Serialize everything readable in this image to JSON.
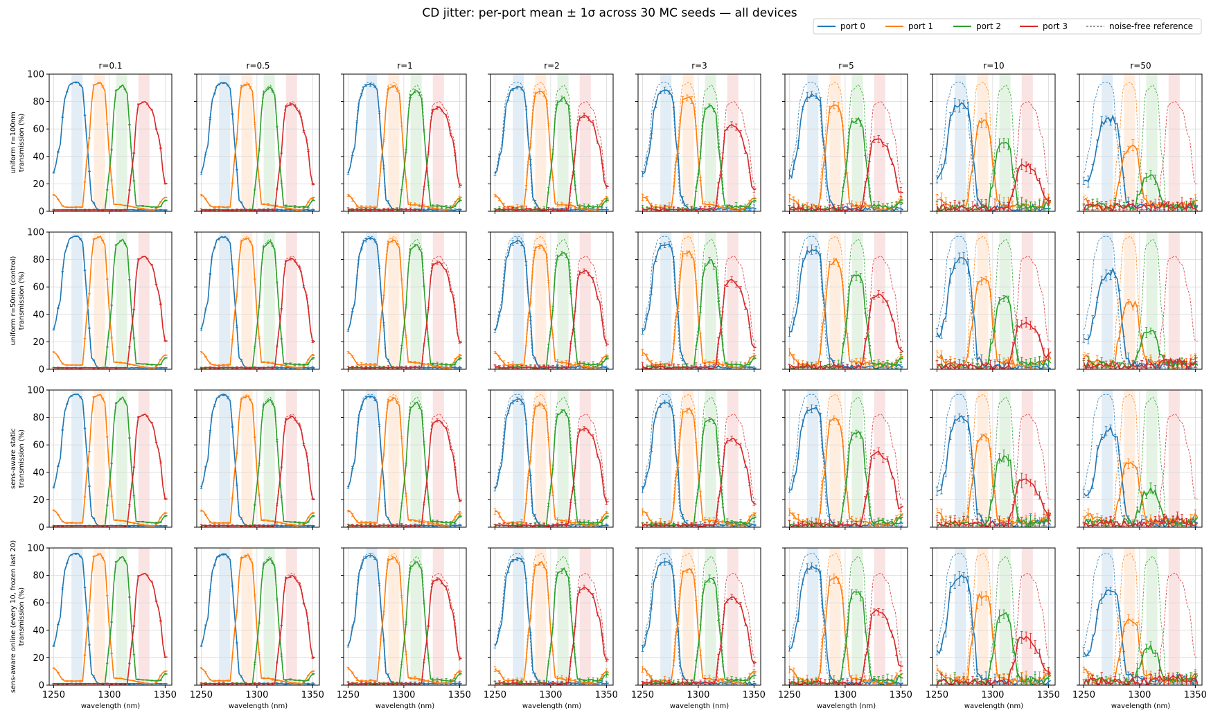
{
  "chart_data": {
    "type": "line",
    "title": "CD jitter: per-port mean ± 1σ across 30 MC seeds — all devices",
    "columns": [
      "r=0.1",
      "r=0.5",
      "r=1",
      "r=2",
      "r=3",
      "r=5",
      "r=10",
      "r=50"
    ],
    "rows": [
      "uniform r=100nm\ntransmission (%)",
      "uniform r=50nm (control)\ntransmission (%)",
      "sens-aware static\ntransmission (%)",
      "sens-aware online (every 10, frozen last 20)\ntransmission (%)"
    ],
    "xlabel": "wavelength (nm)",
    "xlim": [
      1246,
      1356
    ],
    "ylim": [
      0,
      100
    ],
    "xticks": [
      1250,
      1300,
      1350
    ],
    "yticks": [
      0,
      20,
      40,
      60,
      80,
      100
    ],
    "grid": true,
    "legend": {
      "placement": "top-right",
      "entries": [
        "port 0",
        "port 1",
        "port 2",
        "port 3",
        "noise-free reference"
      ]
    },
    "colors": {
      "port 0": "#1f77b4",
      "port 1": "#ff7f0e",
      "port 2": "#2ca02c",
      "port 3": "#d62728",
      "noise-free reference": "#333333"
    },
    "passbands_nm": [
      [
        1266,
        1276
      ],
      [
        1286,
        1296
      ],
      [
        1306,
        1316
      ],
      [
        1326,
        1336
      ]
    ],
    "ports": [
      {
        "name": "port 0",
        "reference": [
          [
            1250,
            28
          ],
          [
            1255,
            45
          ],
          [
            1260,
            82
          ],
          [
            1264,
            92
          ],
          [
            1268,
            94
          ],
          [
            1272,
            94
          ],
          [
            1276,
            90
          ],
          [
            1280,
            50
          ],
          [
            1284,
            8
          ],
          [
            1290,
            1
          ],
          [
            1350,
            1
          ]
        ]
      },
      {
        "name": "port 1",
        "reference": [
          [
            1250,
            12
          ],
          [
            1260,
            3
          ],
          [
            1276,
            3
          ],
          [
            1280,
            40
          ],
          [
            1286,
            92
          ],
          [
            1292,
            94
          ],
          [
            1296,
            88
          ],
          [
            1300,
            40
          ],
          [
            1304,
            5
          ],
          [
            1340,
            1
          ],
          [
            1350,
            10
          ]
        ]
      },
      {
        "name": "port 2",
        "reference": [
          [
            1250,
            1
          ],
          [
            1296,
            1
          ],
          [
            1300,
            30
          ],
          [
            1306,
            88
          ],
          [
            1312,
            92
          ],
          [
            1316,
            86
          ],
          [
            1320,
            40
          ],
          [
            1324,
            4
          ],
          [
            1345,
            3
          ],
          [
            1350,
            8
          ]
        ]
      },
      {
        "name": "port 3",
        "reference": [
          [
            1250,
            1
          ],
          [
            1316,
            1
          ],
          [
            1320,
            30
          ],
          [
            1326,
            78
          ],
          [
            1332,
            80
          ],
          [
            1338,
            74
          ],
          [
            1344,
            55
          ],
          [
            1350,
            20
          ]
        ]
      }
    ]
  },
  "suptitle": "CD jitter: per-port mean ± 1σ across 30 MC seeds — all devices",
  "legend_entries": [
    "port 0",
    "port 1",
    "port 2",
    "port 3",
    "noise-free reference"
  ],
  "column_titles": [
    "r=0.1",
    "r=0.5",
    "r=1",
    "r=2",
    "r=3",
    "r=5",
    "r=10",
    "r=50"
  ],
  "row_labels": [
    [
      "uniform r=100nm",
      "transmission (%)"
    ],
    [
      "uniform r=50nm (control)",
      "transmission (%)"
    ],
    [
      "sens-aware static",
      "transmission (%)"
    ],
    [
      "sens-aware online (every 10, frozen last 20)",
      "transmission (%)"
    ]
  ],
  "xlabel": "wavelength (nm)"
}
